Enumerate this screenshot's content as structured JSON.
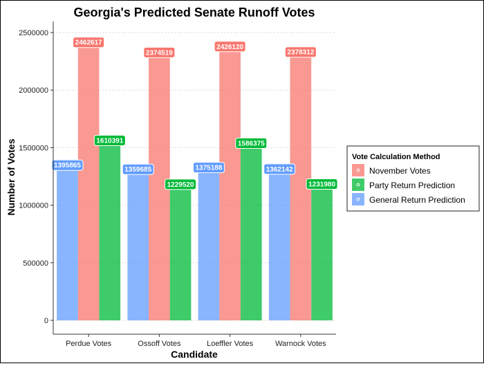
{
  "chart_data": {
    "type": "bar",
    "title": "Georgia's Predicted Senate Runoff Votes",
    "xlabel": "Candidate",
    "ylabel": "Number of Votes",
    "categories": [
      "Perdue Votes",
      "Ossoff Votes",
      "Loeffler Votes",
      "Warnock Votes"
    ],
    "ylim": [
      0,
      2500000
    ],
    "yticks": [
      "0",
      "500000",
      "1000000",
      "1500000",
      "2000000",
      "2500000"
    ],
    "grid": "horizontal-dotted",
    "legend": {
      "title": "Vote Calculation Method",
      "placement": "right",
      "order": [
        "November Votes",
        "Party Return Prediction",
        "General Return Prediction"
      ]
    },
    "series": [
      {
        "name": "General Return Prediction",
        "color": "#619CFF",
        "values": [
          1395865,
          1359685,
          1375188,
          1362142
        ],
        "labels": [
          "1395865",
          "1359685",
          "1375188",
          "1362142"
        ]
      },
      {
        "name": "November Votes",
        "color": "#F8766D",
        "values": [
          2462617,
          2374519,
          2426120,
          2378312
        ],
        "labels": [
          "2462617",
          "2374519",
          "2426120",
          "2378312"
        ]
      },
      {
        "name": "Party Return Prediction",
        "color": "#00BA38",
        "values": [
          1610391,
          1229520,
          1586375,
          1231980
        ],
        "labels": [
          "1610391",
          "1229520",
          "1586375",
          "1231980"
        ]
      }
    ]
  }
}
